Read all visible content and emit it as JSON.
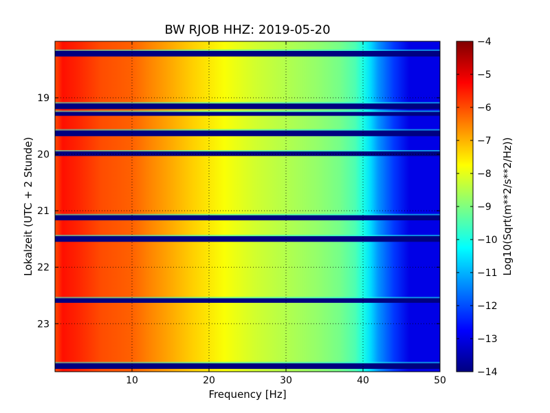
{
  "chart_data": {
    "type": "heatmap",
    "title": "BW RJOB HHZ: 2019-05-20",
    "xlabel": "Frequency [Hz]",
    "ylabel": "Lokalzeit (UTC + 2 Stunde)",
    "xlim": [
      0,
      50
    ],
    "ylim": [
      18.0,
      23.85
    ],
    "y_inverted": true,
    "grid": true,
    "x_ticks": [
      10,
      20,
      30,
      40,
      50
    ],
    "x_tick_labels": [
      "10",
      "20",
      "30",
      "40",
      "50"
    ],
    "y_ticks": [
      19,
      20,
      21,
      22,
      23
    ],
    "y_tick_labels": [
      "19",
      "20",
      "21",
      "22",
      "23"
    ],
    "colormap": "jet",
    "colorbar": {
      "label": "Log10(Sqrt(m**2/s**2/Hz))",
      "range": [
        -14,
        -4
      ],
      "ticks": [
        -4,
        -5,
        -6,
        -7,
        -8,
        -9,
        -10,
        -11,
        -12,
        -13,
        -14
      ],
      "tick_labels": [
        "−4",
        "−5",
        "−6",
        "−7",
        "−8",
        "−9",
        "−10",
        "−11",
        "−12",
        "−13",
        "−14"
      ]
    },
    "spectrum_profile": {
      "frequency_hz": [
        0,
        1,
        3,
        6,
        10,
        12,
        15,
        18,
        22,
        26,
        30,
        34,
        37,
        39,
        40,
        41,
        42,
        44,
        46,
        50
      ],
      "log10_value": [
        -6.0,
        -5.4,
        -5.6,
        -6.0,
        -6.2,
        -6.5,
        -6.9,
        -7.3,
        -7.8,
        -8.2,
        -8.5,
        -8.8,
        -9.1,
        -9.5,
        -10.0,
        -10.6,
        -11.3,
        -12.2,
        -13.0,
        -13.0
      ]
    },
    "gap_intervals_hours": [
      [
        18.17,
        18.27
      ],
      [
        19.1,
        19.2
      ],
      [
        19.25,
        19.32
      ],
      [
        19.58,
        19.68
      ],
      [
        19.95,
        20.03
      ],
      [
        21.08,
        21.17
      ],
      [
        21.45,
        21.55
      ],
      [
        22.55,
        22.63
      ],
      [
        23.7,
        23.8
      ]
    ],
    "gap_value": -14,
    "gap_edge_value": -10
  }
}
